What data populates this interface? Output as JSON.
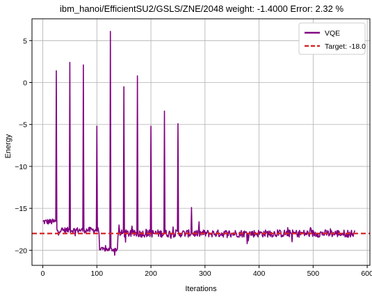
{
  "chart_data": {
    "type": "line",
    "title": "ibm_hanoi/EfficientSU2/GSLS/ZNE/2048 weight: -1.4000 Error: 2.32 %",
    "xlabel": "Iterations",
    "ylabel": "Energy",
    "xlim": [
      -20,
      605
    ],
    "ylim": [
      -21.8,
      7.6
    ],
    "x_ticks": [
      0,
      100,
      200,
      300,
      400,
      500,
      600
    ],
    "y_ticks": [
      5,
      0,
      -5,
      -10,
      -15,
      -20
    ],
    "grid": true,
    "legend_position": "top-right",
    "colors": {
      "vqe": "#800080",
      "target": "#d62728"
    },
    "series": [
      {
        "name": "VQE",
        "style": "solid",
        "baseline_segments": [
          {
            "x": [
              0,
              24
            ],
            "level": -16.6,
            "noise": 0.35
          },
          {
            "x": [
              25,
              104
            ],
            "level": -17.6,
            "noise": 0.35
          },
          {
            "x": [
              105,
              138
            ],
            "level": -19.9,
            "noise": 0.25
          },
          {
            "x": [
              139,
              577
            ],
            "level": -18.0,
            "noise": 0.45
          }
        ],
        "spikes": [
          {
            "x": 25,
            "y": 1.4
          },
          {
            "x": 50,
            "y": 2.4
          },
          {
            "x": 75,
            "y": 2.1
          },
          {
            "x": 100,
            "y": -5.2
          },
          {
            "x": 125,
            "y": 6.1
          },
          {
            "x": 150,
            "y": -0.5
          },
          {
            "x": 175,
            "y": 0.8
          },
          {
            "x": 200,
            "y": -5.2
          },
          {
            "x": 225,
            "y": -3.4
          },
          {
            "x": 250,
            "y": -4.9
          },
          {
            "x": 275,
            "y": -14.9
          }
        ]
      },
      {
        "name": "Target: -18.0",
        "style": "dashed",
        "y": -18.0
      }
    ]
  }
}
